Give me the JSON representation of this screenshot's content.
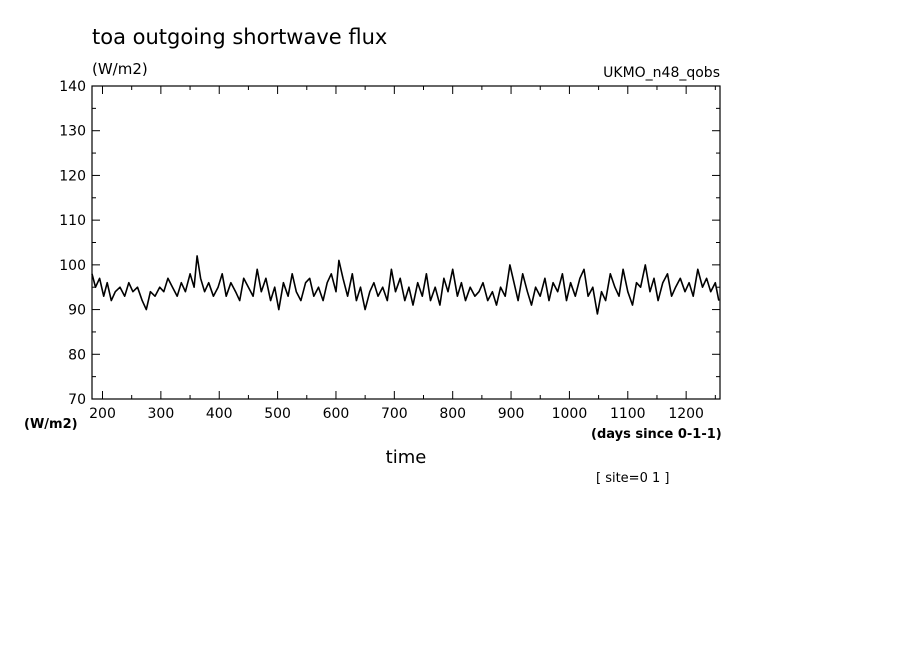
{
  "chart_data": {
    "type": "line",
    "title": "toa outgoing shortwave flux",
    "units_label": "(W/m2)",
    "dataset_label": "UKMO_n48_qobs",
    "ylabel": "(W/m2)",
    "xlabel": "time",
    "x_units": "(days since 0-1-1)",
    "footnote": "[ site=0 1 ]",
    "xlim": [
      182,
      1258
    ],
    "ylim": [
      70,
      140
    ],
    "x_ticks": [
      200,
      300,
      400,
      500,
      600,
      700,
      800,
      900,
      1000,
      1100,
      1200
    ],
    "x_tick_labels": [
      "200",
      "300",
      "400",
      "500",
      "600",
      "700",
      "800",
      "900",
      "1000",
      "1100",
      "1200"
    ],
    "y_ticks": [
      70,
      80,
      90,
      100,
      110,
      120,
      130,
      140
    ],
    "y_tick_labels": [
      "70",
      "80",
      "90",
      "100",
      "110",
      "120",
      "130",
      "140"
    ],
    "grid": false,
    "line_color": "#000000",
    "series": [
      {
        "x": [
          182,
          188,
          195,
          202,
          208,
          215,
          222,
          230,
          238,
          245,
          252,
          260,
          268,
          275,
          282,
          290,
          298,
          305,
          312,
          320,
          328,
          335,
          342,
          350,
          357,
          362,
          368,
          375,
          382,
          390,
          398,
          405,
          412,
          420,
          428,
          435,
          442,
          450,
          458,
          465,
          472,
          480,
          488,
          495,
          502,
          510,
          518,
          525,
          532,
          540,
          548,
          555,
          562,
          570,
          578,
          585,
          592,
          600,
          605,
          612,
          620,
          628,
          635,
          642,
          650,
          658,
          665,
          672,
          680,
          688,
          695,
          702,
          710,
          718,
          725,
          732,
          740,
          748,
          755,
          762,
          770,
          778,
          785,
          792,
          800,
          808,
          815,
          822,
          830,
          838,
          845,
          852,
          860,
          868,
          875,
          882,
          890,
          898,
          905,
          912,
          920,
          928,
          935,
          942,
          950,
          958,
          965,
          972,
          980,
          988,
          995,
          1002,
          1010,
          1018,
          1025,
          1032,
          1040,
          1048,
          1055,
          1062,
          1070,
          1078,
          1085,
          1092,
          1100,
          1108,
          1115,
          1122,
          1130,
          1138,
          1145,
          1152,
          1160,
          1168,
          1175,
          1182,
          1190,
          1198,
          1205,
          1212,
          1220,
          1228,
          1235,
          1242,
          1250,
          1256
        ],
        "values": [
          98,
          95,
          97,
          93,
          96,
          92,
          94,
          95,
          93,
          96,
          94,
          95,
          92,
          90,
          94,
          93,
          95,
          94,
          97,
          95,
          93,
          96,
          94,
          98,
          95,
          102,
          97,
          94,
          96,
          93,
          95,
          98,
          93,
          96,
          94,
          92,
          97,
          95,
          93,
          99,
          94,
          97,
          92,
          95,
          90,
          96,
          93,
          98,
          94,
          92,
          96,
          97,
          93,
          95,
          92,
          96,
          98,
          94,
          101,
          97,
          93,
          98,
          92,
          95,
          90,
          94,
          96,
          93,
          95,
          92,
          99,
          94,
          97,
          92,
          95,
          91,
          96,
          93,
          98,
          92,
          95,
          91,
          97,
          94,
          99,
          93,
          96,
          92,
          95,
          93,
          94,
          96,
          92,
          94,
          91,
          95,
          93,
          100,
          96,
          92,
          98,
          94,
          91,
          95,
          93,
          97,
          92,
          96,
          94,
          98,
          92,
          96,
          93,
          97,
          99,
          93,
          95,
          89,
          94,
          92,
          98,
          95,
          93,
          99,
          94,
          91,
          96,
          95,
          100,
          94,
          97,
          92,
          96,
          98,
          93,
          95,
          97,
          94,
          96,
          93,
          99,
          95,
          97,
          94,
          96,
          92
        ]
      }
    ]
  }
}
